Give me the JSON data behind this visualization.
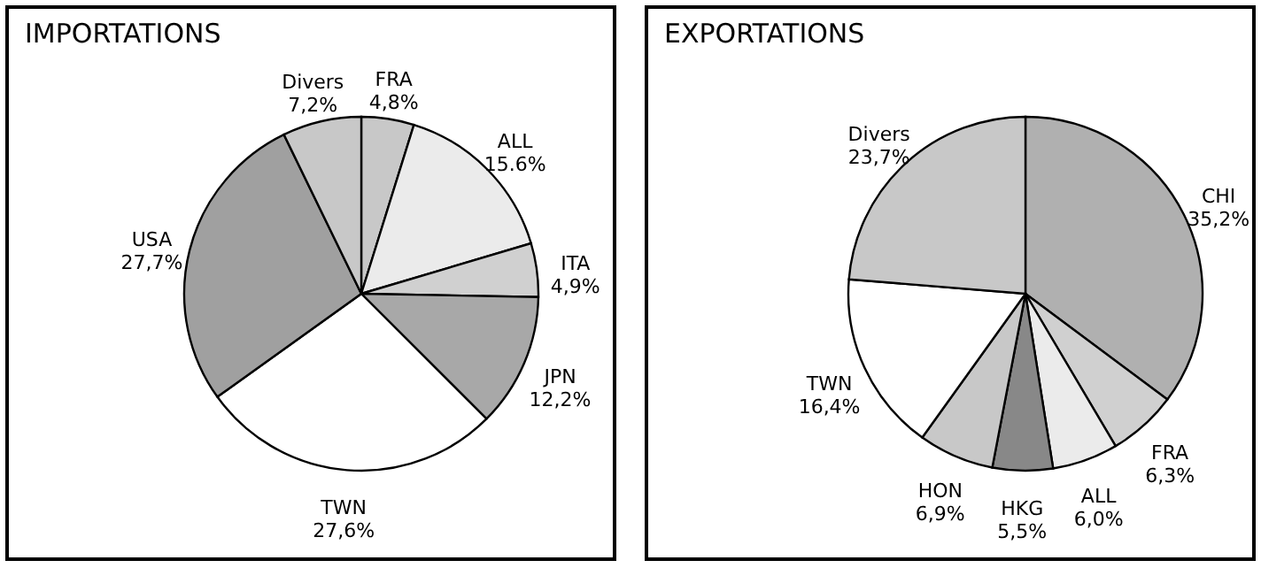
{
  "chart_data": [
    {
      "type": "pie",
      "title": "IMPORTATIONS",
      "categories": [
        "FRA",
        "ALL",
        "ITA",
        "JPN",
        "TWN",
        "USA",
        "Divers"
      ],
      "values": [
        4.8,
        15.6,
        4.9,
        12.2,
        27.6,
        27.7,
        7.2
      ],
      "value_labels": [
        "4,8%",
        "15.6%",
        "4,9%",
        "12,2%",
        "27,6%",
        "27,7%",
        "7,2%"
      ],
      "colors": [
        "#c8c8c8",
        "#ebebeb",
        "#d0d0d0",
        "#a8a8a8",
        "#ffffff",
        "#a0a0a0",
        "#c8c8c8"
      ],
      "legend": false
    },
    {
      "type": "pie",
      "title": "EXPORTATIONS",
      "categories": [
        "CHI",
        "FRA",
        "ALL",
        "HKG",
        "HON",
        "TWN",
        "Divers"
      ],
      "values": [
        35.2,
        6.3,
        6.0,
        5.5,
        6.9,
        16.4,
        23.7
      ],
      "value_labels": [
        "35,2%",
        "6,3%",
        "6,0%",
        "5,5%",
        "6,9%",
        "16,4%",
        "23,7%"
      ],
      "colors": [
        "#b0b0b0",
        "#d0d0d0",
        "#ebebeb",
        "#888888",
        "#c8c8c8",
        "#ffffff",
        "#c8c8c8"
      ],
      "legend": false
    }
  ]
}
